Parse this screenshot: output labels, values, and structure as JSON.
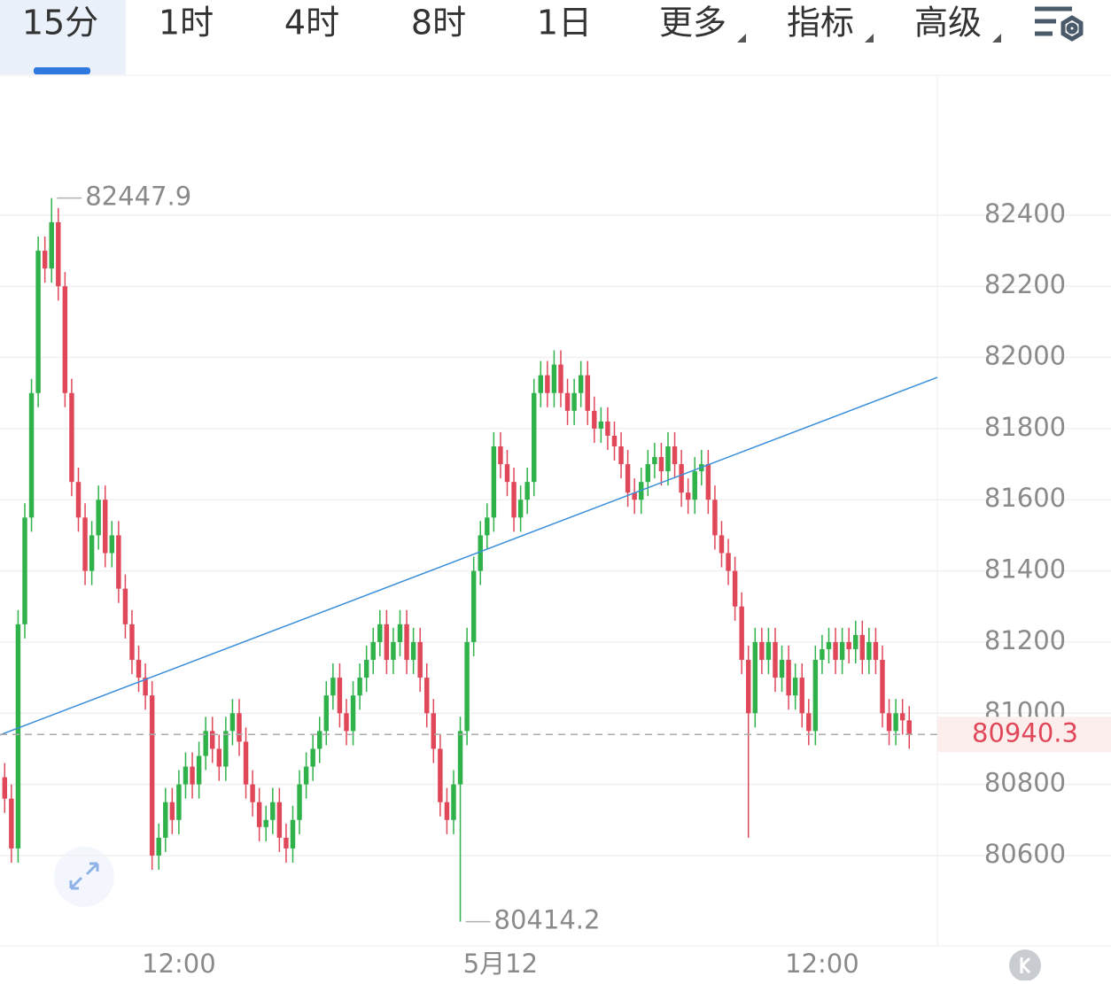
{
  "tabs": {
    "items": [
      "15分",
      "1时",
      "4时",
      "8时",
      "1日",
      "更多",
      "指标",
      "高级"
    ],
    "active": 0
  },
  "chart_data": {
    "type": "candlestick",
    "up_color": "#2fb24a",
    "down_color": "#e0485a",
    "xlim": [
      -0.7,
      139.2
    ],
    "ylim": [
      80346,
      82793
    ],
    "xticks": [
      {
        "value": 26,
        "label": "12:00"
      },
      {
        "value": 74,
        "label": "5月12"
      },
      {
        "value": 122,
        "label": "12:00"
      }
    ],
    "yticks": [
      80600,
      80800,
      81000,
      81200,
      81400,
      81600,
      81800,
      82000,
      82200,
      82400
    ],
    "grid": true,
    "trendline": {
      "start": [
        -0.7,
        80939
      ],
      "end": [
        139.2,
        81944
      ],
      "color": "#3a8fd9"
    },
    "high_marker": 7,
    "low_marker": 68,
    "candles": {
      "open": [
        80820,
        80760,
        80620,
        81250,
        81550,
        81900,
        82300,
        82250,
        82380,
        82200,
        81900,
        81650,
        81550,
        81400,
        81500,
        81600,
        81450,
        81500,
        81350,
        81250,
        81150,
        81100,
        81050,
        80600,
        80650,
        80750,
        80700,
        80800,
        80850,
        80800,
        80880,
        80950,
        80900,
        80850,
        80950,
        81000,
        80920,
        80800,
        80750,
        80680,
        80700,
        80750,
        80650,
        80620,
        80700,
        80800,
        80850,
        80900,
        80950,
        81050,
        81100,
        81000,
        80950,
        81050,
        81100,
        81150,
        81200,
        81250,
        81150,
        81200,
        81250,
        81150,
        81200,
        81100,
        81000,
        80900,
        80750,
        80700,
        80800,
        80950,
        81200,
        81400,
        81500,
        81550,
        81750,
        81700,
        81650,
        81550,
        81600,
        81650,
        81900,
        81950,
        81900,
        81980,
        81900,
        81850,
        81900,
        81950,
        81850,
        81800,
        81820,
        81780,
        81750,
        81700,
        81620,
        81600,
        81650,
        81700,
        81720,
        81680,
        81750,
        81700,
        81620,
        81600,
        81680,
        81700,
        81600,
        81500,
        81450,
        81400,
        81300,
        81150,
        81000,
        81200,
        81150,
        81200,
        81100,
        81150,
        81050,
        81100,
        81000,
        80950,
        81150,
        81180,
        81200,
        81150,
        81200,
        81180,
        81220,
        81150,
        81200,
        81150,
        81000,
        80950,
        81000,
        80980
      ],
      "high": [
        80860,
        80800,
        81290,
        81590,
        81940,
        82340,
        82340,
        82447.9,
        82420,
        82240,
        81940,
        81690,
        81590,
        81540,
        81640,
        81640,
        81540,
        81540,
        81390,
        81290,
        81190,
        81140,
        81090,
        80690,
        80790,
        80790,
        80840,
        80890,
        80890,
        80920,
        80990,
        80990,
        80940,
        80990,
        81040,
        81040,
        80960,
        80840,
        80790,
        80740,
        80790,
        80790,
        80690,
        80740,
        80840,
        80890,
        80940,
        80990,
        81090,
        81140,
        81140,
        81040,
        81090,
        81140,
        81190,
        81240,
        81290,
        81290,
        81240,
        81290,
        81290,
        81240,
        81240,
        81140,
        81040,
        80940,
        80790,
        80840,
        80990,
        81240,
        81440,
        81540,
        81590,
        81790,
        81790,
        81740,
        81690,
        81640,
        81690,
        81940,
        81990,
        81990,
        82020,
        82020,
        81940,
        81940,
        81990,
        81990,
        81890,
        81860,
        81860,
        81820,
        81790,
        81740,
        81660,
        81690,
        81740,
        81760,
        81760,
        81790,
        81790,
        81740,
        81660,
        81720,
        81740,
        81740,
        81640,
        81540,
        81490,
        81440,
        81340,
        81190,
        81240,
        81240,
        81240,
        81240,
        81190,
        81190,
        81140,
        81140,
        81040,
        81190,
        81220,
        81240,
        81240,
        81240,
        81240,
        81260,
        81260,
        81240,
        81240,
        81190,
        81040,
        81040,
        81040,
        81020
      ],
      "low": [
        80720,
        80580,
        80580,
        81210,
        81510,
        81860,
        82210,
        82210,
        82160,
        81860,
        81610,
        81510,
        81360,
        81360,
        81460,
        81410,
        81410,
        81310,
        81210,
        81110,
        81060,
        81010,
        80560,
        80560,
        80610,
        80660,
        80660,
        80760,
        80760,
        80760,
        80840,
        80860,
        80810,
        80810,
        80910,
        80880,
        80760,
        80710,
        80640,
        80640,
        80660,
        80610,
        80580,
        80580,
        80660,
        80760,
        80810,
        80860,
        80910,
        81010,
        80960,
        80910,
        80910,
        81010,
        81060,
        81110,
        81160,
        81110,
        81110,
        81160,
        81110,
        81110,
        81060,
        80960,
        80860,
        80710,
        80660,
        80660,
        80414.2,
        80910,
        81160,
        81360,
        81460,
        81510,
        81660,
        81610,
        81510,
        81510,
        81560,
        81610,
        81860,
        81860,
        81860,
        81860,
        81810,
        81810,
        81860,
        81810,
        81760,
        81760,
        81740,
        81710,
        81660,
        81580,
        81560,
        81560,
        81610,
        81660,
        81640,
        81640,
        81660,
        81580,
        81560,
        81560,
        81640,
        81560,
        81460,
        81410,
        81360,
        81260,
        81110,
        80650,
        80960,
        81110,
        81110,
        81060,
        81060,
        81010,
        81010,
        80960,
        80910,
        80910,
        81110,
        81140,
        81110,
        81110,
        81140,
        81140,
        81110,
        81110,
        81110,
        80960,
        80910,
        80910,
        80940,
        80900
      ],
      "close": [
        80760,
        80620,
        81250,
        81550,
        81900,
        82300,
        82250,
        82380,
        82200,
        81900,
        81650,
        81550,
        81400,
        81500,
        81600,
        81450,
        81500,
        81350,
        81250,
        81150,
        81100,
        81050,
        80600,
        80650,
        80750,
        80700,
        80800,
        80850,
        80800,
        80880,
        80950,
        80900,
        80850,
        80950,
        81000,
        80920,
        80800,
        80750,
        80680,
        80700,
        80750,
        80650,
        80620,
        80700,
        80800,
        80850,
        80900,
        80950,
        81050,
        81100,
        81000,
        80950,
        81050,
        81100,
        81150,
        81200,
        81250,
        81150,
        81200,
        81250,
        81150,
        81200,
        81100,
        81000,
        80900,
        80750,
        80700,
        80800,
        80950,
        81200,
        81400,
        81500,
        81550,
        81750,
        81700,
        81650,
        81550,
        81600,
        81650,
        81900,
        81950,
        81900,
        81980,
        81900,
        81850,
        81900,
        81950,
        81850,
        81800,
        81820,
        81780,
        81750,
        81700,
        81620,
        81600,
        81650,
        81700,
        81720,
        81680,
        81750,
        81700,
        81620,
        81600,
        81680,
        81700,
        81600,
        81500,
        81450,
        81400,
        81300,
        81150,
        81000,
        81200,
        81150,
        81200,
        81100,
        81150,
        81050,
        81100,
        81000,
        80950,
        81150,
        81180,
        81200,
        81150,
        81200,
        81180,
        81220,
        81150,
        81200,
        81150,
        81000,
        80950,
        81000,
        80980,
        80940.3
      ]
    }
  }
}
